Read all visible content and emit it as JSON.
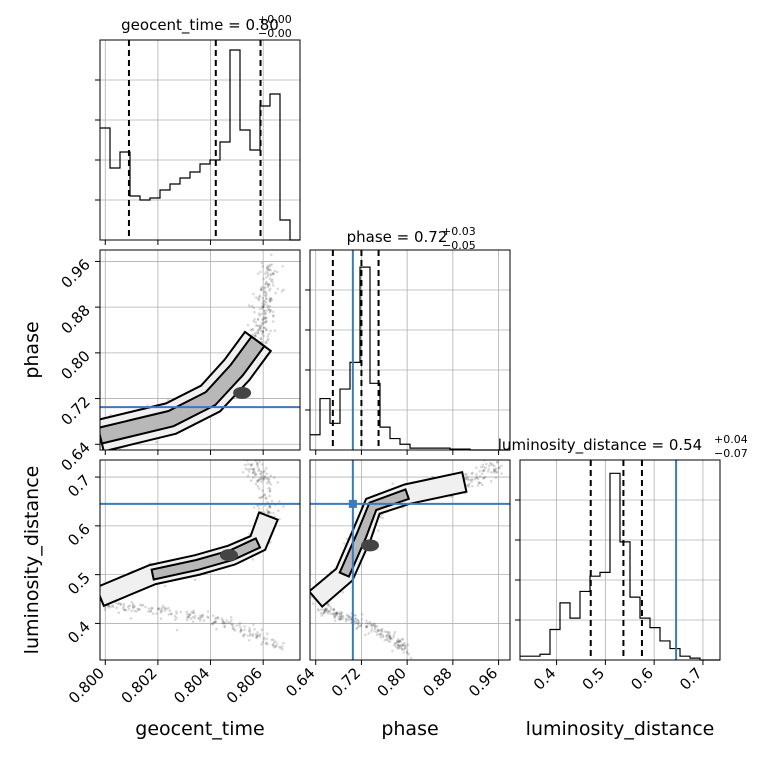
{
  "parameters": [
    {
      "key": "geocent_time",
      "label": "geocent_time",
      "title_value": "0.80",
      "title_plus": "+0.00",
      "title_minus": "−0.00",
      "range": [
        0.7998,
        0.8074
      ],
      "ticks": [
        0.8,
        0.802,
        0.804,
        0.806
      ],
      "tick_labels": [
        "0.800",
        "0.802",
        "0.804",
        "0.806"
      ]
    },
    {
      "key": "phase",
      "label": "phase",
      "title_value": "0.72",
      "title_plus": "+0.03",
      "title_minus": "−0.05",
      "range": [
        0.63,
        0.98
      ],
      "ticks": [
        0.64,
        0.72,
        0.8,
        0.88,
        0.96
      ],
      "tick_labels": [
        "0.64",
        "0.72",
        "0.80",
        "0.88",
        "0.96"
      ]
    },
    {
      "key": "luminosity_distance",
      "label": "luminosity_distance",
      "title_value": "0.54",
      "title_plus": "+0.04",
      "title_minus": "−0.07",
      "range": [
        0.325,
        0.735
      ],
      "ticks": [
        0.4,
        0.5,
        0.6,
        0.7
      ],
      "tick_labels": [
        "0.4",
        "0.5",
        "0.6",
        "0.7"
      ]
    }
  ],
  "chart_data": {
    "type": "corner",
    "truth_color": "#3d7ab8",
    "truths": {
      "geocent_time": null,
      "phase": 0.705,
      "luminosity_distance": 0.645
    },
    "histograms": [
      {
        "param": "geocent_time",
        "bin_edges": [
          0.7998,
          0.80018,
          0.80056,
          0.80094,
          0.80132,
          0.8017,
          0.80208,
          0.80246,
          0.80284,
          0.80322,
          0.8036,
          0.80398,
          0.80436,
          0.80474,
          0.80512,
          0.8055,
          0.80588,
          0.80626,
          0.80664,
          0.80702,
          0.8074
        ],
        "counts": [
          0.56,
          0.36,
          0.44,
          0.22,
          0.2,
          0.21,
          0.25,
          0.28,
          0.31,
          0.34,
          0.38,
          0.4,
          0.49,
          0.95,
          0.55,
          0.45,
          0.67,
          0.73,
          0.1,
          0.0
        ],
        "quantiles": [
          0.8009,
          0.8042,
          0.8059
        ],
        "ylim": [
          0,
          1.0
        ]
      },
      {
        "param": "phase",
        "bin_edges": [
          0.63,
          0.6475,
          0.665,
          0.6825,
          0.7,
          0.7175,
          0.735,
          0.7525,
          0.77,
          0.7875,
          0.805,
          0.8225,
          0.84,
          0.8575,
          0.875,
          0.8925,
          0.91,
          0.9275,
          0.945,
          0.9625,
          0.98
        ],
        "counts": [
          0.08,
          0.27,
          0.14,
          0.32,
          0.46,
          0.96,
          0.35,
          0.12,
          0.06,
          0.03,
          0.01,
          0.01,
          0.01,
          0.01,
          0.005,
          0.005,
          0.0,
          0.0,
          0.0,
          0.0
        ],
        "quantiles": [
          0.67,
          0.72,
          0.75
        ],
        "ylim": [
          0,
          1.05
        ]
      },
      {
        "param": "luminosity_distance",
        "bin_edges": [
          0.325,
          0.3455,
          0.366,
          0.3865,
          0.407,
          0.4275,
          0.448,
          0.4685,
          0.489,
          0.5095,
          0.53,
          0.5505,
          0.571,
          0.5915,
          0.612,
          0.6325,
          0.653,
          0.6735,
          0.694,
          0.7145,
          0.735
        ],
        "counts": [
          0.02,
          0.02,
          0.03,
          0.16,
          0.3,
          0.22,
          0.36,
          0.44,
          0.46,
          0.98,
          0.62,
          0.33,
          0.22,
          0.17,
          0.1,
          0.06,
          0.02,
          0.01,
          0.0,
          0.0
        ],
        "quantiles": [
          0.47,
          0.537,
          0.575
        ],
        "ylim": [
          0,
          1.05
        ]
      }
    ],
    "scatter_panels": [
      {
        "x": "geocent_time",
        "y": "phase",
        "path": [
          [
            0.7998,
            0.655
          ],
          [
            0.8025,
            0.685
          ],
          [
            0.804,
            0.72
          ],
          [
            0.805,
            0.77
          ],
          [
            0.8058,
            0.82
          ],
          [
            0.806,
            0.88
          ],
          [
            0.8063,
            0.96
          ]
        ],
        "core": [
          0.8052,
          0.73
        ]
      },
      {
        "x": "geocent_time",
        "y": "luminosity_distance",
        "upper_arm": [
          [
            0.7998,
            0.455
          ],
          [
            0.8018,
            0.5
          ],
          [
            0.8035,
            0.52
          ],
          [
            0.8048,
            0.54
          ],
          [
            0.8058,
            0.565
          ],
          [
            0.8062,
            0.62
          ],
          [
            0.806,
            0.7
          ],
          [
            0.8055,
            0.73
          ]
        ],
        "lower_arm": [
          [
            0.7998,
            0.44
          ],
          [
            0.802,
            0.425
          ],
          [
            0.804,
            0.41
          ],
          [
            0.8055,
            0.38
          ],
          [
            0.8068,
            0.345
          ]
        ],
        "core": [
          0.8047,
          0.54
        ]
      },
      {
        "x": "phase",
        "y": "luminosity_distance",
        "upper_arm": [
          [
            0.64,
            0.45
          ],
          [
            0.69,
            0.5
          ],
          [
            0.72,
            0.58
          ],
          [
            0.74,
            0.64
          ],
          [
            0.8,
            0.665
          ],
          [
            0.9,
            0.69
          ],
          [
            0.96,
            0.72
          ]
        ],
        "lower_arm": [
          [
            0.65,
            0.43
          ],
          [
            0.7,
            0.41
          ],
          [
            0.76,
            0.38
          ],
          [
            0.8,
            0.345
          ]
        ],
        "core": [
          0.735,
          0.56
        ]
      }
    ]
  }
}
